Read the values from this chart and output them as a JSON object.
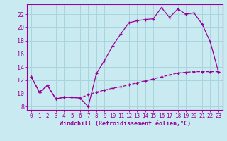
{
  "xlabel": "Windchill (Refroidissement éolien,°C)",
  "background_color": "#c8eaf0",
  "grid_color": "#aad4dc",
  "line_color": "#990099",
  "x_ticks": [
    0,
    1,
    2,
    3,
    4,
    5,
    6,
    7,
    8,
    9,
    10,
    11,
    12,
    13,
    14,
    15,
    16,
    17,
    18,
    19,
    20,
    21,
    22,
    23
  ],
  "y_ticks": [
    8,
    10,
    12,
    14,
    16,
    18,
    20,
    22
  ],
  "ylim": [
    7.5,
    23.5
  ],
  "xlim": [
    -0.5,
    23.5
  ],
  "line1_x": [
    0,
    1,
    2,
    3,
    4,
    5,
    6,
    7,
    8,
    9,
    10,
    11,
    12,
    13,
    14,
    15,
    16,
    17,
    18,
    19,
    20,
    21,
    22,
    23
  ],
  "line1_y": [
    12.5,
    10.2,
    11.2,
    9.2,
    9.4,
    9.4,
    9.3,
    8.0,
    13.0,
    15.0,
    17.2,
    19.0,
    20.7,
    21.0,
    21.2,
    21.3,
    23.0,
    21.5,
    22.8,
    22.0,
    22.2,
    20.5,
    17.8,
    13.3
  ],
  "line2_x": [
    0,
    1,
    2,
    3,
    4,
    5,
    6,
    7,
    8,
    9,
    10,
    11,
    12,
    13,
    14,
    15,
    16,
    17,
    18,
    19,
    20,
    21,
    22,
    23
  ],
  "line2_y": [
    12.5,
    10.2,
    11.2,
    9.2,
    9.4,
    9.4,
    9.3,
    9.8,
    10.2,
    10.5,
    10.8,
    11.0,
    11.3,
    11.6,
    11.9,
    12.2,
    12.5,
    12.8,
    13.1,
    13.2,
    13.3,
    13.3,
    13.3,
    13.3
  ],
  "marker": "+",
  "tick_fontsize": 5.5,
  "xlabel_fontsize": 6.0,
  "linewidth": 0.9,
  "markersize": 3.5
}
